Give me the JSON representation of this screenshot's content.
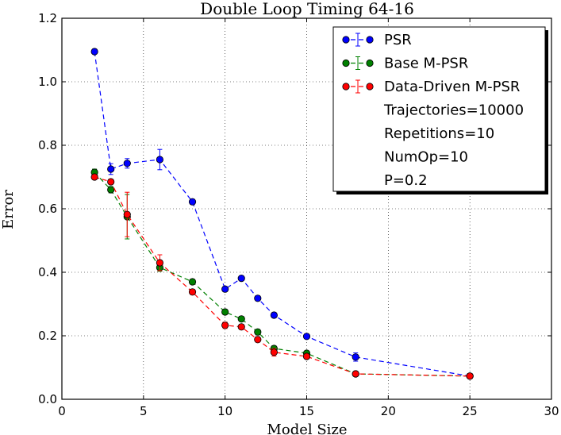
{
  "chart_data": {
    "type": "line",
    "title": "Double Loop Timing 64-16",
    "xlabel": "Model Size",
    "ylabel": "Error",
    "xlim": [
      0,
      30
    ],
    "ylim": [
      0,
      1.2
    ],
    "xticks": [
      "0",
      "5",
      "10",
      "15",
      "20",
      "25",
      "30"
    ],
    "yticks": [
      "0.0",
      "0.2",
      "0.4",
      "0.6",
      "0.8",
      "1.0",
      "1.2"
    ],
    "grid": true,
    "legend_position": "top-right",
    "legend_notes": [
      "Trajectories=10000",
      "Repetitions=10",
      "NumOp=10",
      "P=0.2"
    ],
    "series": [
      {
        "name": "PSR",
        "color": "#0000ff",
        "x": [
          2,
          3,
          4,
          6,
          8,
          10,
          11,
          12,
          13,
          15,
          18,
          25
        ],
        "y": [
          1.095,
          0.725,
          0.743,
          0.755,
          0.622,
          0.347,
          0.381,
          0.318,
          0.265,
          0.198,
          0.133,
          0.073
        ],
        "err": [
          0.008,
          0.017,
          0.015,
          0.032,
          0.008,
          0.008,
          0.008,
          0.008,
          0.008,
          0.006,
          0.013,
          0.008
        ]
      },
      {
        "name": "Base M-PSR",
        "color": "#008000",
        "x": [
          2,
          3,
          4,
          6,
          8,
          10,
          11,
          12,
          13,
          15,
          18,
          25
        ],
        "y": [
          0.715,
          0.66,
          0.575,
          0.415,
          0.37,
          0.275,
          0.253,
          0.212,
          0.16,
          0.145,
          0.08,
          0.073
        ],
        "err": [
          0.01,
          0.01,
          0.07,
          0.012,
          0.008,
          0.008,
          0.008,
          0.008,
          0.008,
          0.006,
          0.005,
          0.004
        ]
      },
      {
        "name": "Data-Driven M-PSR",
        "color": "#ff0000",
        "x": [
          2,
          3,
          4,
          6,
          8,
          10,
          11,
          12,
          13,
          15,
          18,
          25
        ],
        "y": [
          0.7,
          0.685,
          0.582,
          0.43,
          0.338,
          0.233,
          0.228,
          0.188,
          0.148,
          0.135,
          0.08,
          0.073
        ],
        "err": [
          0.008,
          0.008,
          0.07,
          0.025,
          0.008,
          0.01,
          0.008,
          0.008,
          0.012,
          0.008,
          0.006,
          0.008
        ]
      }
    ]
  }
}
